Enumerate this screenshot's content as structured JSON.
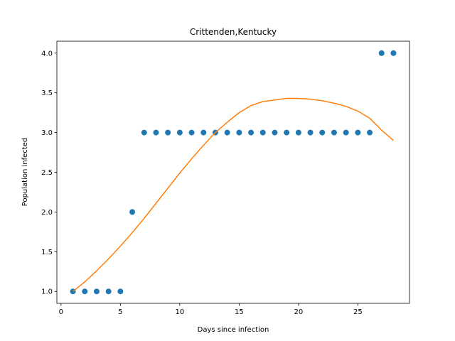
{
  "chart_data": {
    "type": "scatter",
    "title": "Crittenden,Kentucky",
    "xlabel": "Days since infection",
    "ylabel": "Population infected",
    "xlim": [
      -0.35,
      29.35
    ],
    "ylim": [
      0.85,
      4.15
    ],
    "xticks": [
      0,
      5,
      10,
      15,
      20,
      25
    ],
    "yticks": [
      1.0,
      1.5,
      2.0,
      2.5,
      3.0,
      3.5,
      4.0
    ],
    "xtick_labels": [
      "0",
      "5",
      "10",
      "15",
      "20",
      "25"
    ],
    "ytick_labels": [
      "1.0",
      "1.5",
      "2.0",
      "2.5",
      "3.0",
      "3.5",
      "4.0"
    ],
    "grid": false,
    "series": [
      {
        "kind": "scatter",
        "color": "#1f77b4",
        "x": [
          1,
          2,
          3,
          4,
          5,
          6,
          7,
          8,
          9,
          10,
          11,
          12,
          13,
          14,
          15,
          16,
          17,
          18,
          19,
          20,
          21,
          22,
          23,
          24,
          25,
          26,
          27,
          28
        ],
        "y": [
          1,
          1,
          1,
          1,
          1,
          2,
          3,
          3,
          3,
          3,
          3,
          3,
          3,
          3,
          3,
          3,
          3,
          3,
          3,
          3,
          3,
          3,
          3,
          3,
          3,
          3,
          4,
          4
        ]
      },
      {
        "kind": "line",
        "color": "#ff7f0e",
        "x": [
          1,
          2,
          3,
          4,
          5,
          6,
          7,
          8,
          9,
          10,
          11,
          12,
          13,
          14,
          15,
          16,
          17,
          18,
          19,
          20,
          21,
          22,
          23,
          24,
          25,
          26,
          27,
          28
        ],
        "y": [
          1.0,
          1.12,
          1.26,
          1.41,
          1.57,
          1.74,
          1.92,
          2.11,
          2.3,
          2.49,
          2.67,
          2.84,
          3.0,
          3.13,
          3.25,
          3.34,
          3.39,
          3.41,
          3.43,
          3.43,
          3.42,
          3.4,
          3.37,
          3.33,
          3.27,
          3.18,
          3.03,
          2.9
        ]
      }
    ]
  }
}
